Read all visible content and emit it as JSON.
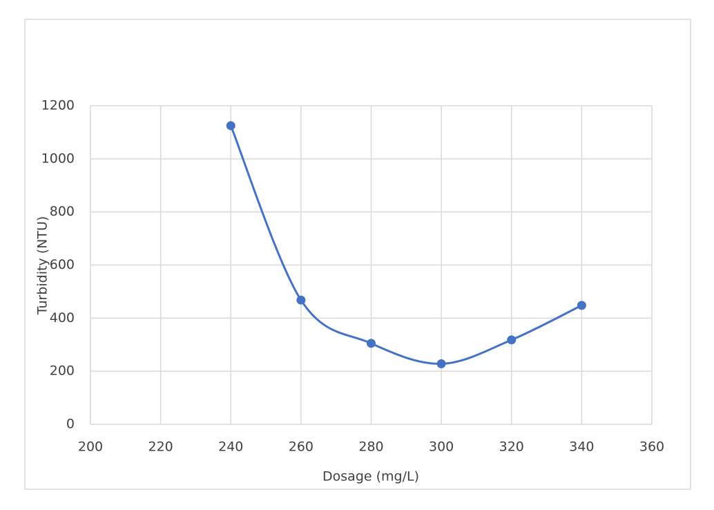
{
  "chart_data": {
    "type": "scatter-smooth",
    "x_label": "Dosage (mg/L)",
    "y_label": "Turbidity (NTU)",
    "x": [
      240,
      260,
      280,
      300,
      320,
      340
    ],
    "values": [
      1125,
      468,
      305,
      228,
      318,
      448
    ],
    "color": "#4472c4",
    "xlim": [
      200,
      360
    ],
    "xticks": [
      200,
      220,
      240,
      260,
      280,
      300,
      320,
      340,
      360
    ],
    "ylim": [
      0,
      1200
    ],
    "yticks": [
      0,
      200,
      400,
      600,
      800,
      1000,
      1200
    ],
    "grid": true
  }
}
